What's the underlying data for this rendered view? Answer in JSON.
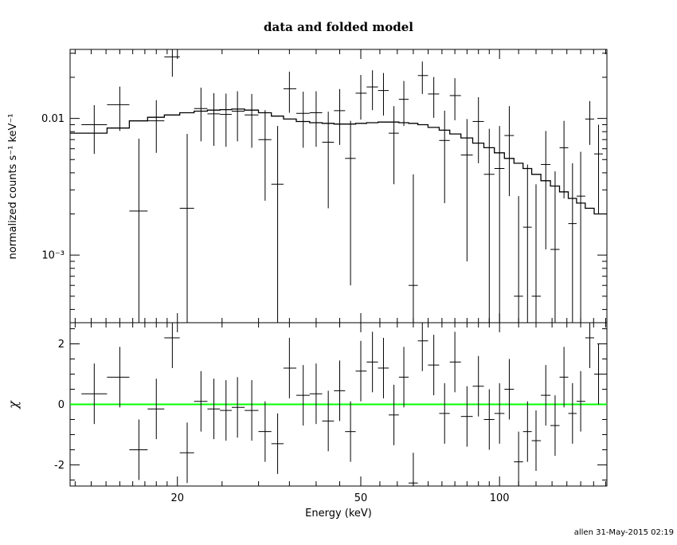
{
  "title": "data and folded model",
  "footer": {
    "timestamp": "allen 31-May-2015 02:19"
  },
  "chart_data": [
    {
      "type": "scatter",
      "panel": "top",
      "title": "data and folded model",
      "xlabel": "Energy (keV)",
      "ylabel": "normalized counts s⁻¹ keV⁻¹",
      "xscale": "log",
      "yscale": "log",
      "xlim": [
        11.7,
        171
      ],
      "ylim": [
        0.00032,
        0.032
      ],
      "grid": false,
      "legend": "none",
      "marker": "cross-with-error-bars",
      "x_ticks": [
        {
          "value": 20,
          "label": "20"
        },
        {
          "value": 50,
          "label": "50"
        },
        {
          "value": 100,
          "label": "100"
        }
      ],
      "y_ticks": [
        {
          "value": 0.01,
          "label": "0.01"
        },
        {
          "value": 0.001,
          "label": "10⁻³"
        }
      ],
      "x": [
        13.2,
        15,
        16.5,
        18,
        19.5,
        21,
        22.5,
        24,
        25.5,
        27,
        29,
        31,
        33,
        35,
        37.5,
        40,
        42.5,
        45,
        47.5,
        50,
        53,
        56,
        59,
        62,
        65,
        68,
        72,
        76,
        80,
        85,
        90,
        95,
        100,
        105,
        110,
        115,
        120,
        126,
        132,
        138,
        144,
        150,
        157,
        164
      ],
      "y": [
        0.009,
        0.0126,
        0.0021,
        0.0096,
        0.0282,
        0.0022,
        0.0118,
        0.0108,
        0.0107,
        0.0113,
        0.0106,
        0.007,
        0.0033,
        0.0165,
        0.0109,
        0.011,
        0.0067,
        0.0114,
        0.0051,
        0.0153,
        0.017,
        0.016,
        0.0078,
        0.0138,
        0.0006,
        0.0206,
        0.0151,
        0.0069,
        0.0147,
        0.0054,
        0.0095,
        0.0039,
        0.0043,
        0.0075,
        0.0005,
        0.0016,
        0.0005,
        0.0046,
        0.0011,
        0.0061,
        0.0017,
        0.0027,
        0.0099,
        0.0055
      ],
      "yerr": [
        0.0035,
        0.0045,
        0.005,
        0.004,
        0.008,
        0.0055,
        0.005,
        0.0045,
        0.0045,
        0.0045,
        0.0045,
        0.0045,
        0.0055,
        0.0055,
        0.0048,
        0.0048,
        0.0045,
        0.005,
        0.0045,
        0.0055,
        0.0055,
        0.0055,
        0.0045,
        0.005,
        0.0033,
        0.0055,
        0.005,
        0.0045,
        0.005,
        0.0045,
        0.0048,
        0.0045,
        0.0045,
        0.0048,
        0.0022,
        0.003,
        0.0028,
        0.0035,
        0.003,
        0.0035,
        0.003,
        0.003,
        0.0035,
        0.0035
      ],
      "model": [
        0.0078,
        0.0085,
        0.0096,
        0.0102,
        0.0106,
        0.011,
        0.0113,
        0.0115,
        0.0116,
        0.0117,
        0.0115,
        0.011,
        0.0104,
        0.0099,
        0.0095,
        0.0093,
        0.0092,
        0.0091,
        0.0091,
        0.0092,
        0.0093,
        0.0094,
        0.0094,
        0.0093,
        0.0092,
        0.009,
        0.0086,
        0.0082,
        0.0077,
        0.0072,
        0.0066,
        0.0061,
        0.0056,
        0.0051,
        0.0047,
        0.0043,
        0.0039,
        0.0035,
        0.0032,
        0.0029,
        0.0026,
        0.0024,
        0.0022,
        0.002
      ]
    },
    {
      "type": "scatter",
      "panel": "bottom",
      "ylabel": "χ",
      "xscale": "log",
      "yscale": "linear",
      "xlim": [
        11.7,
        171
      ],
      "ylim": [
        -2.7,
        2.7
      ],
      "grid": false,
      "zero_line_color": "#00ff00",
      "y_ticks": [
        {
          "value": 2,
          "label": "2"
        },
        {
          "value": 0,
          "label": "0"
        },
        {
          "value": -2,
          "label": "-2"
        }
      ],
      "x": [
        13.2,
        15,
        16.5,
        18,
        19.5,
        21,
        22.5,
        24,
        25.5,
        27,
        29,
        31,
        33,
        35,
        37.5,
        40,
        42.5,
        45,
        47.5,
        50,
        53,
        56,
        59,
        62,
        65,
        68,
        72,
        76,
        80,
        85,
        90,
        95,
        100,
        105,
        110,
        115,
        120,
        126,
        132,
        138,
        144,
        150,
        157,
        164
      ],
      "chi": [
        0.35,
        0.9,
        -1.5,
        -0.15,
        2.2,
        -1.6,
        0.1,
        -0.15,
        -0.2,
        -0.1,
        -0.2,
        -0.9,
        -1.3,
        1.2,
        0.3,
        0.35,
        -0.55,
        0.45,
        -0.9,
        1.1,
        1.4,
        1.2,
        -0.35,
        0.9,
        -2.6,
        2.1,
        1.3,
        -0.3,
        1.4,
        -0.4,
        0.6,
        -0.5,
        -0.3,
        0.5,
        -1.9,
        -0.9,
        -1.2,
        0.3,
        -0.7,
        0.9,
        -0.3,
        0.1,
        2.2,
        1.0
      ],
      "chi_err": 1
    }
  ]
}
